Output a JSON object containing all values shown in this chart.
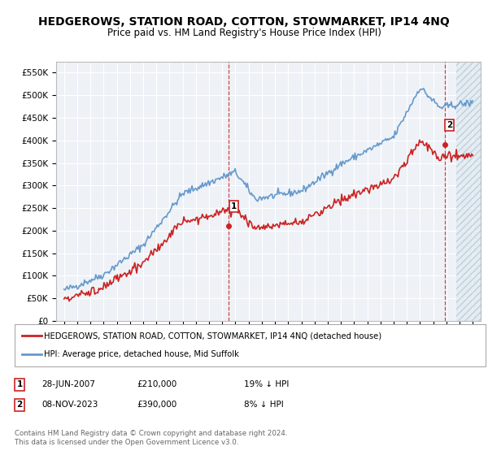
{
  "title": "HEDGEROWS, STATION ROAD, COTTON, STOWMARKET, IP14 4NQ",
  "subtitle": "Price paid vs. HM Land Registry's House Price Index (HPI)",
  "title_fontsize": 10,
  "subtitle_fontsize": 8.5,
  "hpi_color": "#6699cc",
  "price_color": "#cc2222",
  "dashed_color": "#cc2222",
  "marker_box_color": "#cc2222",
  "background_color": "#ffffff",
  "plot_bg_color": "#eef2f7",
  "grid_color": "#ffffff",
  "ylim": [
    0,
    575000
  ],
  "yticks": [
    0,
    50000,
    100000,
    150000,
    200000,
    250000,
    300000,
    350000,
    400000,
    450000,
    500000,
    550000
  ],
  "ytick_labels": [
    "£0",
    "£50K",
    "£100K",
    "£150K",
    "£200K",
    "£250K",
    "£300K",
    "£350K",
    "£400K",
    "£450K",
    "£500K",
    "£550K"
  ],
  "legend_entry1": "HEDGEROWS, STATION ROAD, COTTON, STOWMARKET, IP14 4NQ (detached house)",
  "legend_entry2": "HPI: Average price, detached house, Mid Suffolk",
  "annotation1_label": "1",
  "annotation1_date": "28-JUN-2007",
  "annotation1_price": "£210,000",
  "annotation1_hpi": "19% ↓ HPI",
  "annotation2_label": "2",
  "annotation2_date": "08-NOV-2023",
  "annotation2_price": "£390,000",
  "annotation2_hpi": "8% ↓ HPI",
  "footer_text": "Contains HM Land Registry data © Crown copyright and database right 2024.\nThis data is licensed under the Open Government Licence v3.0.",
  "sale1_x": 2007.49,
  "sale1_y": 210000,
  "sale2_x": 2023.86,
  "sale2_y": 390000,
  "xlim_left": 1994.4,
  "xlim_right": 2026.6,
  "hatch_start": 2024.75
}
